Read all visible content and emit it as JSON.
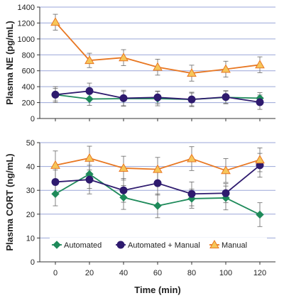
{
  "colors": {
    "automated": "#1e8a5a",
    "automated_manual": "#2e1a6e",
    "manual_line": "#e87722",
    "manual_fill": "#f6c65a",
    "grid": "#9aa6d8",
    "axis": "#333333"
  },
  "chart_data": [
    {
      "type": "line",
      "ylabel": "Plasma NE (pg/mL)",
      "ylim": [
        0,
        1400
      ],
      "yticks": [
        0,
        200,
        400,
        600,
        800,
        1000,
        1200,
        1400
      ],
      "grid": true,
      "x": [
        0,
        20,
        40,
        60,
        80,
        100,
        120
      ],
      "series": [
        {
          "name": "Automated",
          "values": [
            300,
            245,
            250,
            250,
            240,
            265,
            255
          ],
          "err": [
            80,
            80,
            90,
            90,
            80,
            80,
            70
          ]
        },
        {
          "name": "Automated + Manual",
          "values": [
            300,
            345,
            255,
            265,
            240,
            270,
            205
          ],
          "err": [
            100,
            100,
            100,
            80,
            90,
            80,
            90
          ]
        },
        {
          "name": "Manual",
          "values": [
            1210,
            730,
            765,
            645,
            570,
            620,
            675
          ],
          "err": [
            100,
            90,
            100,
            100,
            100,
            100,
            100
          ]
        }
      ]
    },
    {
      "type": "line",
      "xlabel": "Time (min)",
      "ylabel": "Plasma CORT (ng/mL)",
      "ylim": [
        0,
        50
      ],
      "yticks": [
        0,
        10,
        20,
        30,
        40,
        50
      ],
      "xticks": [
        0,
        20,
        40,
        60,
        80,
        100,
        120
      ],
      "grid": true,
      "legend": "bottom",
      "x": [
        0,
        20,
        40,
        60,
        80,
        100,
        120
      ],
      "series": [
        {
          "name": "Automated",
          "values": [
            28.5,
            36.8,
            27.0,
            23.5,
            26.5,
            26.8,
            19.8
          ],
          "err": [
            5,
            6,
            5,
            5,
            4,
            5,
            5
          ]
        },
        {
          "name": "Automated + Manual",
          "values": [
            33.5,
            34.5,
            30.0,
            33.0,
            28.5,
            28.8,
            40.5
          ],
          "err": [
            5,
            6,
            5,
            5,
            5,
            4,
            5
          ]
        },
        {
          "name": "Manual",
          "values": [
            40.5,
            43.5,
            39.3,
            38.8,
            43.3,
            38.3,
            42.8
          ],
          "err": [
            6,
            5,
            5,
            5,
            5,
            5,
            5
          ]
        }
      ]
    }
  ]
}
